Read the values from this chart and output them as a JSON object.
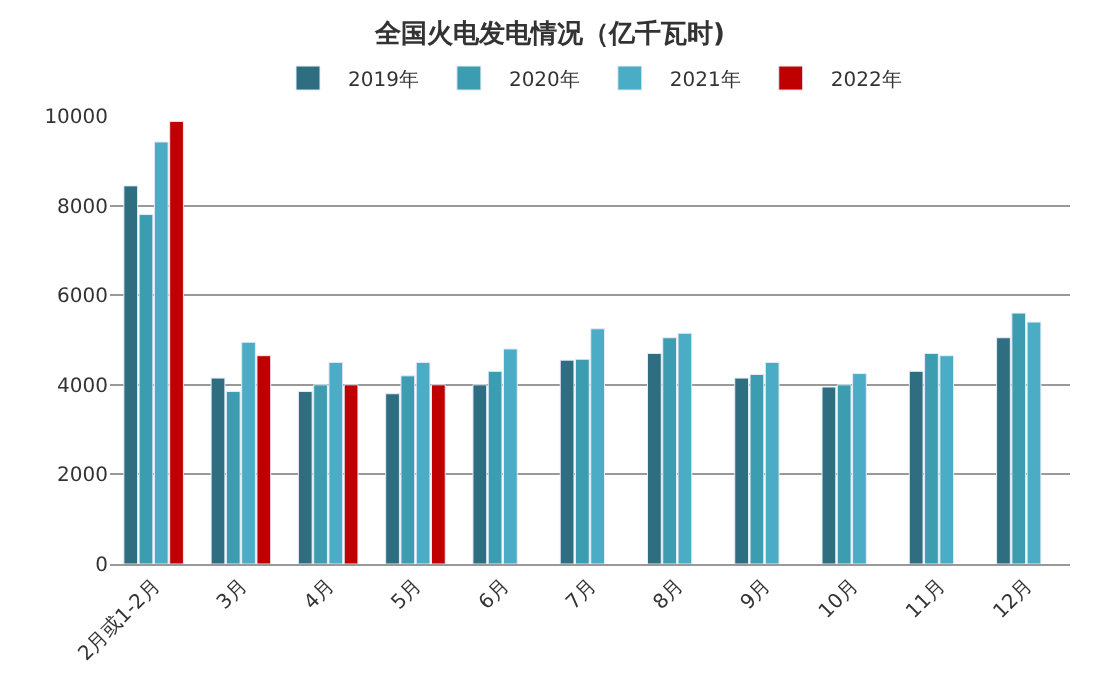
{
  "chart_data": {
    "type": "bar",
    "title": "全国火电发电情况（亿千瓦时)",
    "categories": [
      "2月或1-2月",
      "3月",
      "4月",
      "5月",
      "6月",
      "7月",
      "8月",
      "9月",
      "10月",
      "11月",
      "12月"
    ],
    "series": [
      {
        "name": "2019年",
        "color": "#2e6e80",
        "values": [
          8440,
          4150,
          3850,
          3800,
          4000,
          4550,
          4700,
          4150,
          3950,
          4300,
          5050
        ]
      },
      {
        "name": "2020年",
        "color": "#3d9db0",
        "values": [
          7800,
          3850,
          4000,
          4200,
          4300,
          4570,
          5050,
          4230,
          4000,
          4700,
          5600
        ]
      },
      {
        "name": "2021年",
        "color": "#4bacc6",
        "values": [
          9420,
          4950,
          4500,
          4500,
          4800,
          5250,
          5150,
          4500,
          4250,
          4650,
          5400
        ]
      },
      {
        "name": "2022年",
        "color": "#c00000",
        "values": [
          9880,
          4650,
          4000,
          4000,
          null,
          null,
          null,
          null,
          null,
          null,
          null
        ]
      }
    ],
    "ylim": [
      0,
      10000
    ],
    "yticks": [
      0,
      2000,
      4000,
      6000,
      8000,
      10000
    ],
    "grid": "y",
    "legend": "top"
  }
}
